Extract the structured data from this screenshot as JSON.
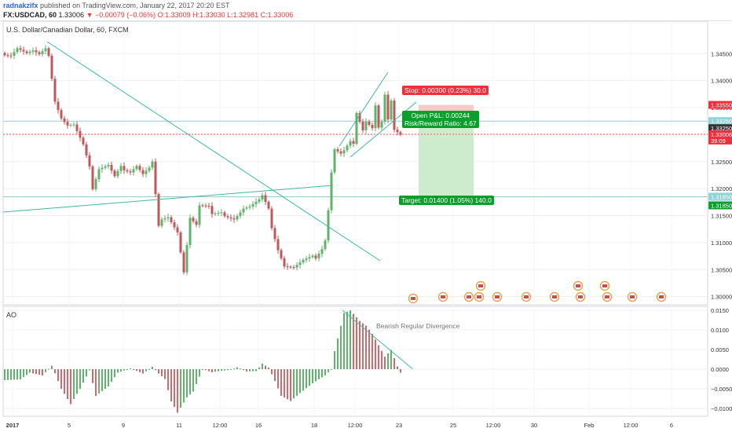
{
  "header": {
    "author": "radnakzifx",
    "published": " published on TradingView.com, January 22, 2017 20:20 EST",
    "symbol": "FX:USDCAD, 60",
    "last": "1.33006",
    "change": "▼ −0.00079 (−0.06%)",
    "ohlc": "O:1.33009 H:1.33030 L:1.32981 C:1.33006"
  },
  "pane_title": "U.S. Dollar/Canadian Dollar, 60, FXCM",
  "ao_title": "AO",
  "annotation": "Bearish Regular Divergence",
  "trade": {
    "stop": "Stop: 0.00300 (0.23%) 30.0",
    "open_pnl": "Open P&L: 0.00244",
    "risk_reward": "Risk/Reward Ratio: 4.67",
    "target": "Target: 0.01400 (1.05%) 140.0"
  },
  "colors": {
    "up": "#5fb36b",
    "down": "#c2575b",
    "trend": "#3fb99f",
    "stop_zone": "#f6c9cb",
    "target_zone": "#cdeccd",
    "ao_up": "#5fb36b",
    "ao_down": "#d06a6e"
  },
  "chart_data": [
    {
      "type": "candlestick",
      "title": "U.S. Dollar/Canadian Dollar, 60, FXCM",
      "ylim": [
        1.2985,
        1.351
      ],
      "y_ticks": [
        "1.34500",
        "1.34000",
        "1.33500",
        "1.33000",
        "1.32500",
        "1.32000",
        "1.31500",
        "1.31000",
        "1.30500",
        "1.30000"
      ],
      "x_ticks": [
        "2017",
        "5",
        "9",
        "11",
        "12:00",
        "16",
        "18",
        "12:00",
        "23",
        "25",
        "12:00",
        "30",
        "Feb",
        "12:00",
        "6"
      ],
      "price_labels": [
        {
          "text": "1.33550",
          "value": 1.3355,
          "color": "#ef2f3c"
        },
        {
          "text": "1.33250",
          "value": 1.3325,
          "color": "#8fd3d6"
        },
        {
          "text": "1.33250",
          "value": 1.3325,
          "color": "#333333"
        },
        {
          "text": "1.33006",
          "value": 1.33006,
          "color": "#ef2f3c"
        },
        {
          "text": "39:09",
          "value": 1.3292,
          "color": "#ef2f3c"
        },
        {
          "text": "1.31850",
          "value": 1.3185,
          "color": "#8fd3d6"
        },
        {
          "text": "1.31850",
          "value": 1.3185,
          "color": "#0a9e2a"
        }
      ],
      "keypoints": [
        [
          0,
          1.3447
        ],
        [
          2,
          1.3446
        ],
        [
          4,
          1.346
        ],
        [
          7,
          1.3451
        ],
        [
          9,
          1.3456
        ],
        [
          11,
          1.3449
        ],
        [
          13,
          1.346
        ],
        [
          14,
          1.3446
        ],
        [
          16,
          1.3361
        ],
        [
          18,
          1.333
        ],
        [
          20,
          1.3317
        ],
        [
          22,
          1.3319
        ],
        [
          25,
          1.3282
        ],
        [
          27,
          1.3241
        ],
        [
          28,
          1.3199
        ],
        [
          30,
          1.3236
        ],
        [
          33,
          1.3244
        ],
        [
          35,
          1.3223
        ],
        [
          37,
          1.3242
        ],
        [
          38,
          1.3234
        ],
        [
          40,
          1.323
        ],
        [
          42,
          1.3242
        ],
        [
          44,
          1.3227
        ],
        [
          46,
          1.3239
        ],
        [
          47,
          1.325
        ],
        [
          48,
          1.319
        ],
        [
          49,
          1.3131
        ],
        [
          50,
          1.3143
        ],
        [
          52,
          1.3147
        ],
        [
          55,
          1.3119
        ],
        [
          57,
          1.3045
        ],
        [
          59,
          1.3146
        ],
        [
          61,
          1.3133
        ],
        [
          62,
          1.3169
        ],
        [
          65,
          1.3168
        ],
        [
          66,
          1.3153
        ],
        [
          69,
          1.3156
        ],
        [
          70,
          1.3149
        ],
        [
          73,
          1.3143
        ],
        [
          75,
          1.3156
        ],
        [
          76,
          1.3163
        ],
        [
          78,
          1.3167
        ],
        [
          81,
          1.318
        ],
        [
          82,
          1.3188
        ],
        [
          84,
          1.3163
        ],
        [
          85,
          1.3127
        ],
        [
          87,
          1.3086
        ],
        [
          89,
          1.3056
        ],
        [
          92,
          1.3054
        ],
        [
          95,
          1.3068
        ],
        [
          98,
          1.3076
        ],
        [
          99,
          1.3071
        ],
        [
          101,
          1.3088
        ],
        [
          102,
          1.3104
        ],
        [
          103,
          1.316
        ],
        [
          104,
          1.323
        ],
        [
          105,
          1.3273
        ],
        [
          107,
          1.3265
        ],
        [
          108,
          1.3271
        ],
        [
          110,
          1.3288
        ],
        [
          111,
          1.3283
        ],
        [
          112,
          1.334
        ],
        [
          114,
          1.3308
        ],
        [
          115,
          1.3324
        ],
        [
          117,
          1.3312
        ],
        [
          118,
          1.3354
        ],
        [
          119,
          1.3313
        ],
        [
          120,
          1.3324
        ],
        [
          121,
          1.3374
        ],
        [
          122,
          1.3328
        ],
        [
          123,
          1.3363
        ],
        [
          124,
          1.3309
        ],
        [
          126,
          1.33
        ]
      ],
      "trade_zones": {
        "entry": 1.3325,
        "stop": 1.3355,
        "target": 1.3185,
        "current": 1.33006
      }
    },
    {
      "type": "bar",
      "title": "AO",
      "ylim": [
        -0.012,
        0.016
      ],
      "y_ticks": [
        "0.0150",
        "0.0100",
        "0.0050",
        "0.0000",
        "−0.0050",
        "−0.0100"
      ],
      "keypoints": [
        [
          0,
          -0.0028
        ],
        [
          5,
          -0.0026
        ],
        [
          8,
          -0.0009
        ],
        [
          12,
          -0.0016
        ],
        [
          15,
          0.0009
        ],
        [
          18,
          -0.005
        ],
        [
          21,
          -0.0089
        ],
        [
          24,
          -0.005
        ],
        [
          27,
          -0.0003
        ],
        [
          29,
          -0.0068
        ],
        [
          33,
          -0.0044
        ],
        [
          36,
          -0.0009
        ],
        [
          40,
          0.0002
        ],
        [
          44,
          -0.0011
        ],
        [
          47,
          0.0006
        ],
        [
          49,
          -0.0011
        ],
        [
          51,
          -0.0025
        ],
        [
          53,
          -0.0082
        ],
        [
          55,
          -0.0111
        ],
        [
          58,
          -0.0072
        ],
        [
          60,
          -0.0057
        ],
        [
          63,
          0.0
        ],
        [
          66,
          -0.0008
        ],
        [
          70,
          -0.0003
        ],
        [
          72,
          -0.0002
        ],
        [
          74,
          0.0005
        ],
        [
          77,
          -0.0006
        ],
        [
          80,
          -0.0005
        ],
        [
          82,
          0.0014
        ],
        [
          84,
          0.0004
        ],
        [
          86,
          -0.003
        ],
        [
          88,
          -0.0068
        ],
        [
          91,
          -0.0081
        ],
        [
          94,
          -0.0061
        ],
        [
          98,
          -0.0036
        ],
        [
          102,
          -0.0016
        ],
        [
          104,
          0.0
        ],
        [
          105,
          0.0046
        ],
        [
          108,
          0.0143
        ],
        [
          110,
          0.015
        ],
        [
          113,
          0.0123
        ],
        [
          115,
          0.0111
        ],
        [
          117,
          0.009
        ],
        [
          119,
          0.0061
        ],
        [
          121,
          0.0032
        ],
        [
          123,
          0.0049
        ],
        [
          125,
          0.0007
        ],
        [
          126,
          -0.0009
        ]
      ],
      "annotation": "Bearish Regular Divergence"
    }
  ]
}
